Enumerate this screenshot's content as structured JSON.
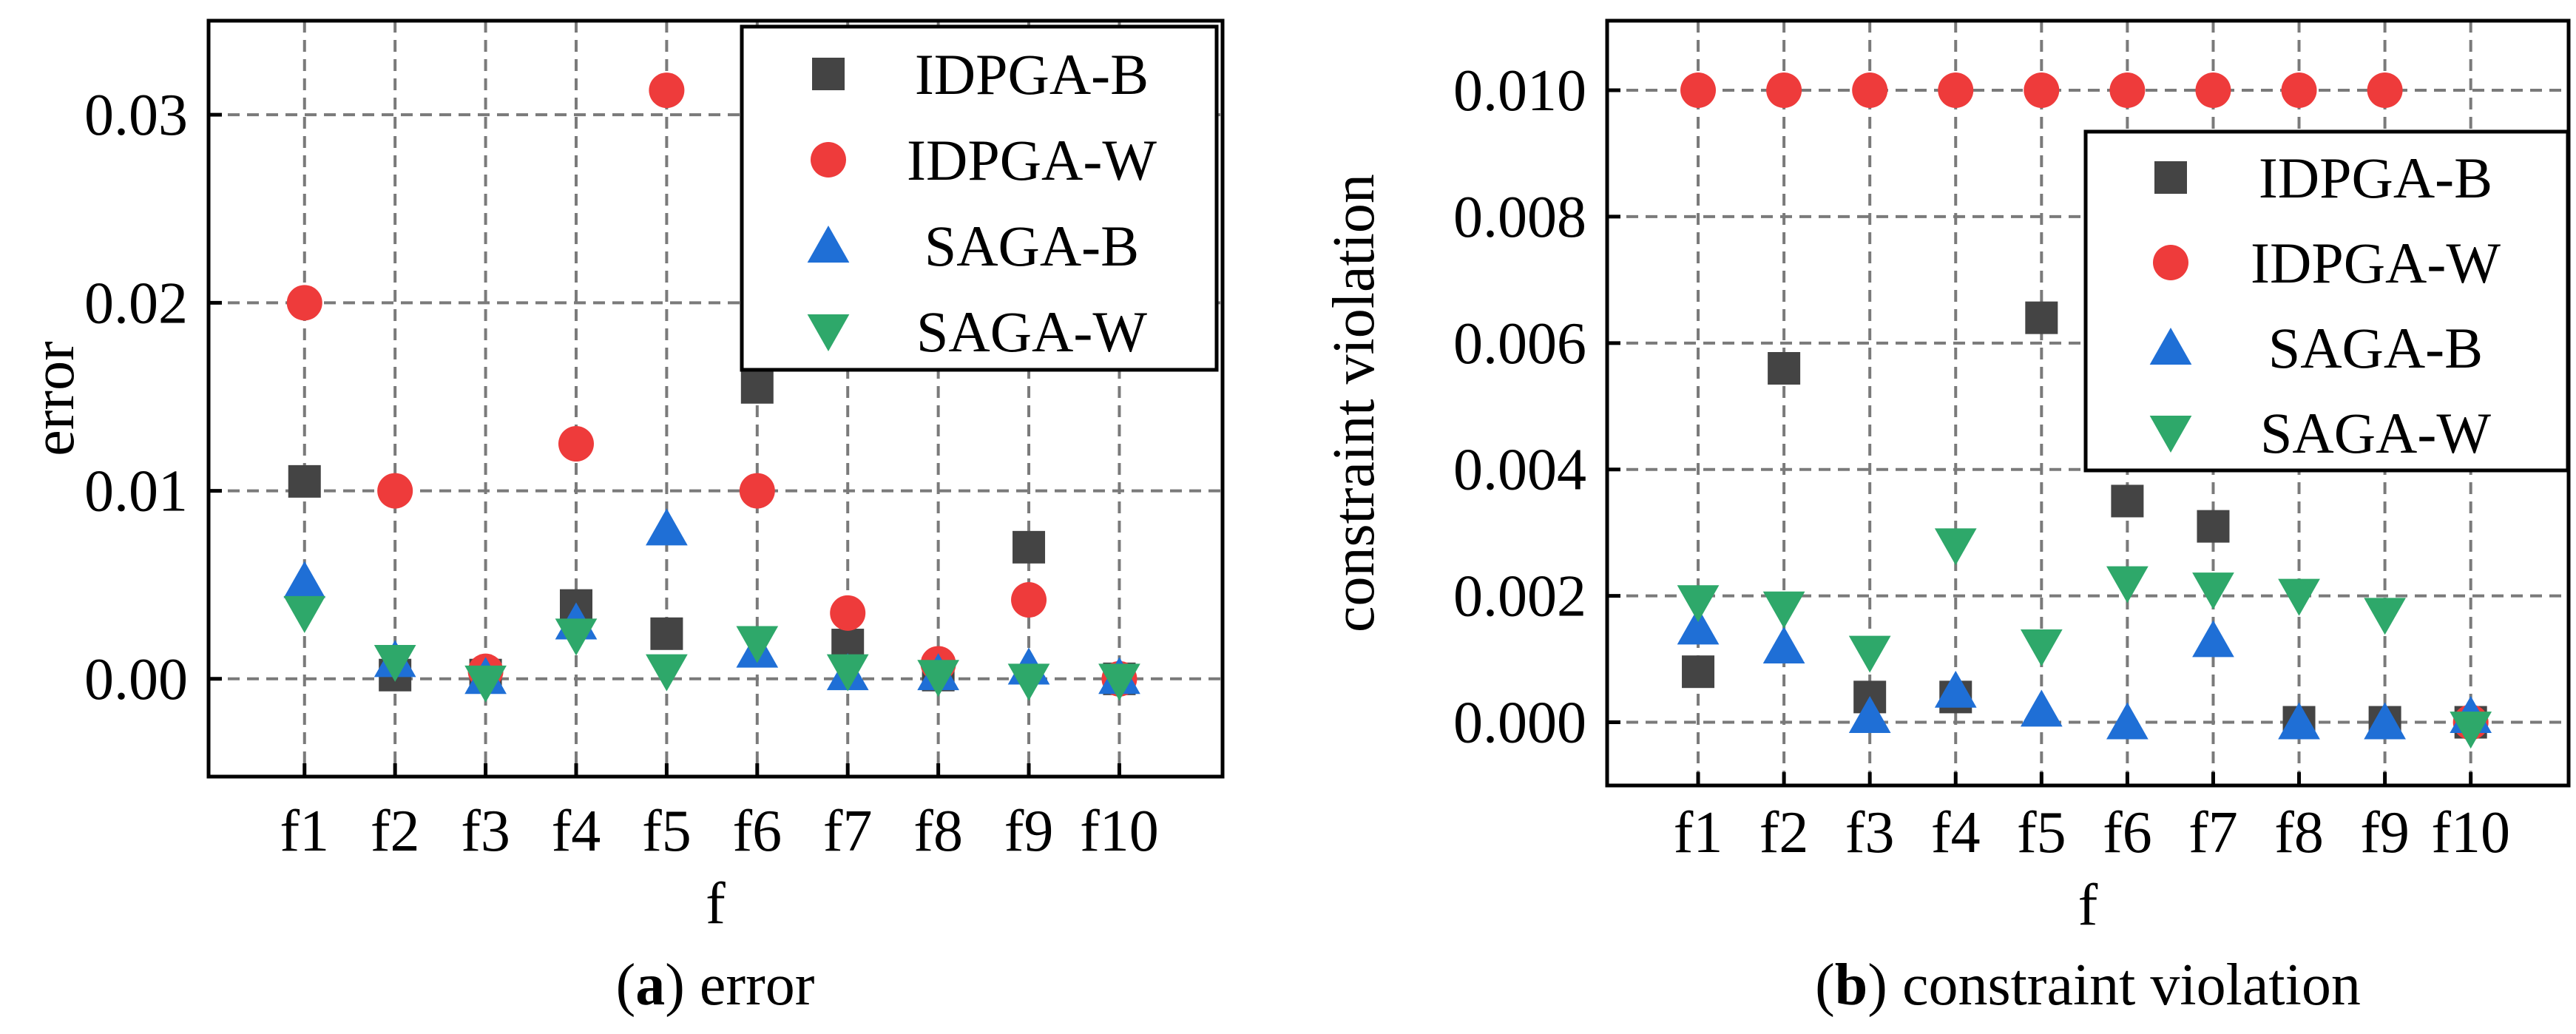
{
  "chart_data": [
    {
      "type": "scatter",
      "panel": "a",
      "caption_letter": "a",
      "caption_text": "error",
      "xlabel": "f",
      "ylabel": "error",
      "categories": [
        "f1",
        "f2",
        "f3",
        "f4",
        "f5",
        "f6",
        "f7",
        "f8",
        "f9",
        "f10"
      ],
      "ylim": [
        -0.0052,
        0.035
      ],
      "yticks": [
        0.0,
        0.01,
        0.02,
        0.03
      ],
      "ytick_labels": [
        "0.00",
        "0.01",
        "0.02",
        "0.03"
      ],
      "grid": true,
      "legend_position": "top-right",
      "series": [
        {
          "name": "IDPGA-B",
          "marker": "square",
          "color": "#444444",
          "values": [
            0.0105,
            0.0002,
            0.0002,
            0.0039,
            0.0024,
            0.0155,
            0.0018,
            0.0002,
            0.007,
            0.0
          ]
        },
        {
          "name": "IDPGA-W",
          "marker": "circle",
          "color": "#ee3b3b",
          "values": [
            0.02,
            0.01,
            0.0004,
            0.0125,
            0.0313,
            0.01,
            0.0035,
            0.0008,
            0.0042,
            0.0
          ]
        },
        {
          "name": "SAGA-B",
          "marker": "triangle-up",
          "color": "#1f6fd6",
          "values": [
            0.0052,
            0.001,
            0.0001,
            0.003,
            0.008,
            0.0015,
            0.0003,
            0.0003,
            0.0006,
            0.0001
          ]
        },
        {
          "name": "SAGA-W",
          "marker": "triangle-down",
          "color": "#2ea86a",
          "values": [
            0.0035,
            0.0009,
            -0.0002,
            0.0023,
            0.0004,
            0.0019,
            0.0004,
            0.0001,
            -0.0001,
            -0.0001
          ]
        }
      ]
    },
    {
      "type": "scatter",
      "panel": "b",
      "caption_letter": "b",
      "caption_text": "constraint violation",
      "xlabel": "f",
      "ylabel": "constraint violation",
      "categories": [
        "f1",
        "f2",
        "f3",
        "f4",
        "f5",
        "f6",
        "f7",
        "f8",
        "f9",
        "f10"
      ],
      "ylim": [
        -0.001,
        0.0111
      ],
      "yticks": [
        0.0,
        0.002,
        0.004,
        0.006,
        0.008,
        0.01
      ],
      "ytick_labels": [
        "0.000",
        "0.002",
        "0.004",
        "0.006",
        "0.008",
        "0.010"
      ],
      "grid": true,
      "legend_position": "top-right",
      "series": [
        {
          "name": "IDPGA-B",
          "marker": "square",
          "color": "#444444",
          "values": [
            0.0008,
            0.0056,
            0.0004,
            0.0004,
            0.0064,
            0.0035,
            0.0031,
            0.0,
            0.0,
            0.0
          ]
        },
        {
          "name": "IDPGA-W",
          "marker": "circle",
          "color": "#ee3b3b",
          "values": [
            0.01,
            0.01,
            0.01,
            0.01,
            0.01,
            0.01,
            0.01,
            0.01,
            0.01,
            0.0
          ]
        },
        {
          "name": "SAGA-B",
          "marker": "triangle-up",
          "color": "#1f6fd6",
          "values": [
            0.0015,
            0.0012,
            0.0001,
            0.0005,
            0.0002,
            0.0,
            0.0013,
            0.0,
            0.0,
            0.0001
          ]
        },
        {
          "name": "SAGA-W",
          "marker": "triangle-down",
          "color": "#2ea86a",
          "values": [
            0.0019,
            0.0018,
            0.0011,
            0.0028,
            0.0012,
            0.0022,
            0.0021,
            0.002,
            0.0017,
            -0.0001
          ]
        }
      ]
    }
  ]
}
